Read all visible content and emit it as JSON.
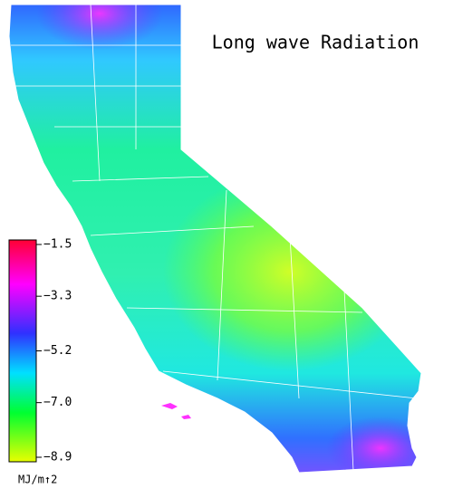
{
  "title": "Long wave Radiation",
  "colorbar": {
    "lim": [
      -8.9,
      -1.5
    ],
    "ticks": [
      {
        "value": -1.5,
        "label": "−1.5"
      },
      {
        "value": -3.3,
        "label": "−3.3"
      },
      {
        "value": -5.2,
        "label": "−5.2"
      },
      {
        "value": -7.0,
        "label": "−7.0"
      },
      {
        "value": -8.9,
        "label": "−8.9"
      }
    ],
    "unit": "MJ/m↑2"
  }
}
